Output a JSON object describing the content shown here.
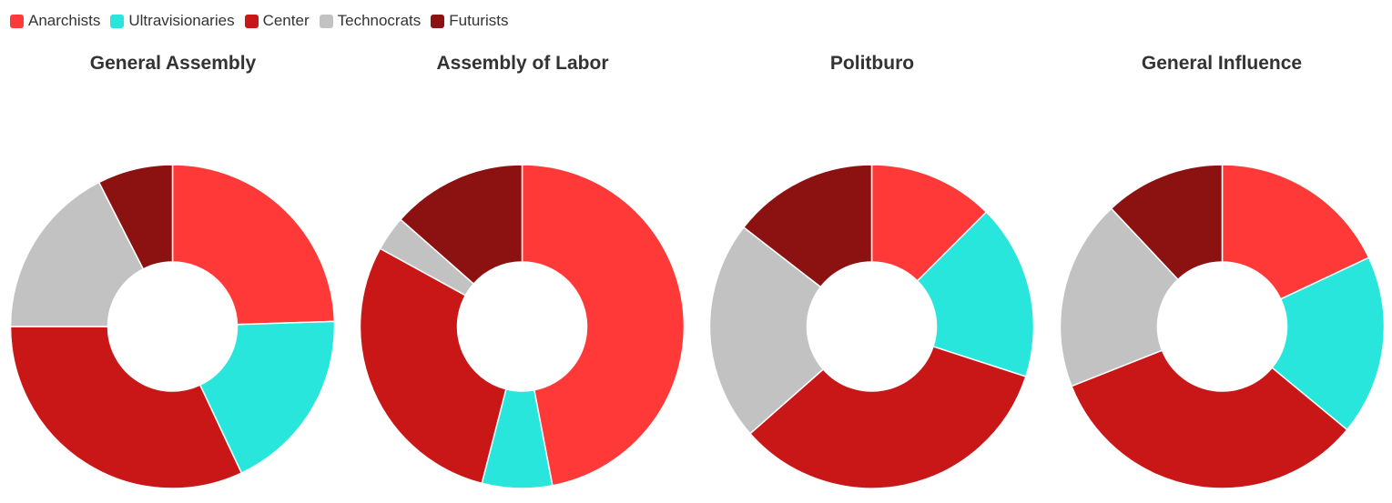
{
  "legend": [
    {
      "label": "Anarchists",
      "color": "#ff3838"
    },
    {
      "label": "Ultravisionaries",
      "color": "#29e6dc"
    },
    {
      "label": "Center",
      "color": "#c91717"
    },
    {
      "label": "Technocrats",
      "color": "#c2c2c2"
    },
    {
      "label": "Futurists",
      "color": "#8c1212"
    }
  ],
  "chart_data": [
    {
      "type": "pie",
      "title": "General Assembly",
      "donut": true,
      "categories": [
        "Anarchists",
        "Ultravisionaries",
        "Center",
        "Technocrats",
        "Futurists"
      ],
      "values": [
        24.5,
        18.5,
        32,
        17.5,
        7.5
      ]
    },
    {
      "type": "pie",
      "title": "Assembly of Labor",
      "donut": true,
      "categories": [
        "Anarchists",
        "Ultravisionaries",
        "Center",
        "Technocrats",
        "Futurists"
      ],
      "values": [
        47,
        7,
        29,
        3.5,
        13.5
      ]
    },
    {
      "type": "pie",
      "title": "Politburo",
      "donut": true,
      "categories": [
        "Anarchists",
        "Ultravisionaries",
        "Center",
        "Technocrats",
        "Futurists"
      ],
      "values": [
        12.5,
        17.5,
        33.5,
        22,
        14.5
      ]
    },
    {
      "type": "pie",
      "title": "General Influence",
      "donut": true,
      "categories": [
        "Anarchists",
        "Ultravisionaries",
        "Center",
        "Technocrats",
        "Futurists"
      ],
      "values": [
        18,
        18,
        33,
        19,
        12
      ]
    }
  ]
}
